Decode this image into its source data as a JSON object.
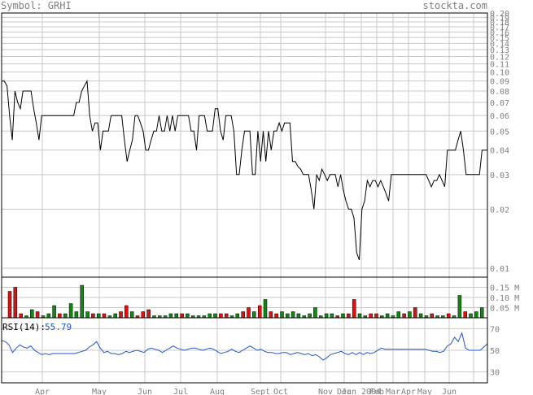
{
  "header": {
    "symbol_text": "Symbol: GRHI",
    "site": "stockta.com"
  },
  "chart_data": [
    {
      "type": "line",
      "panel": "price",
      "scale": "log",
      "ylim": [
        0.009,
        0.2
      ],
      "y_ticks": [
        "0.20",
        "0.19",
        "0.18",
        "0.17",
        "0.16",
        "0.15",
        "0.14",
        "0.13",
        "0.12",
        "0.11",
        "0.10",
        "0.09",
        "0.08",
        "0.07",
        "0.06",
        "0.05",
        "0.04",
        "0.03",
        "0.02",
        "0.01"
      ],
      "x_ticks": [
        "Apr",
        "May",
        "Jun",
        "Jul",
        "Aug",
        "Sept",
        "Oct",
        "Nov",
        "Dec",
        "Jan 2004",
        "Feb",
        "Mar",
        "Apr",
        "May",
        "Jun"
      ],
      "series": [
        {
          "values": [
            0.09,
            0.09,
            0.085,
            0.06,
            0.045,
            0.08,
            0.07,
            0.065,
            0.08,
            0.08,
            0.08,
            0.08,
            0.065,
            0.055,
            0.045,
            0.06,
            0.06,
            0.06,
            0.06,
            0.06,
            0.06,
            0.06,
            0.06,
            0.06,
            0.06,
            0.06,
            0.06,
            0.06,
            0.07,
            0.07,
            0.08,
            0.085,
            0.09,
            0.06,
            0.05,
            0.055,
            0.055,
            0.04,
            0.05,
            0.05,
            0.05,
            0.06,
            0.06,
            0.06,
            0.06,
            0.06,
            0.045,
            0.035,
            0.04,
            0.045,
            0.06,
            0.06,
            0.055,
            0.05,
            0.04,
            0.04,
            0.045,
            0.05,
            0.05,
            0.06,
            0.05,
            0.05,
            0.06,
            0.05,
            0.06,
            0.05,
            0.06,
            0.06,
            0.06,
            0.06,
            0.06,
            0.05,
            0.05,
            0.04,
            0.06,
            0.06,
            0.06,
            0.05,
            0.05,
            0.05,
            0.065,
            0.065,
            0.05,
            0.045,
            0.06,
            0.06,
            0.06,
            0.05,
            0.03,
            0.03,
            0.04,
            0.05,
            0.05,
            0.05,
            0.03,
            0.03,
            0.05,
            0.035,
            0.05,
            0.035,
            0.05,
            0.04,
            0.05,
            0.05,
            0.055,
            0.05,
            0.055,
            0.055,
            0.055,
            0.035,
            0.035,
            0.033,
            0.032,
            0.03,
            0.03,
            0.03,
            0.025,
            0.02,
            0.03,
            0.028,
            0.032,
            0.03,
            0.028,
            0.03,
            0.03,
            0.03,
            0.026,
            0.03,
            0.025,
            0.022,
            0.02,
            0.02,
            0.018,
            0.012,
            0.011,
            0.02,
            0.022,
            0.028,
            0.026,
            0.028,
            0.028,
            0.026,
            0.028,
            0.026,
            0.024,
            0.022,
            0.03,
            0.03,
            0.03,
            0.03,
            0.03,
            0.03,
            0.03,
            0.03,
            0.03,
            0.03,
            0.03,
            0.03,
            0.03,
            0.03,
            0.028,
            0.026,
            0.028,
            0.028,
            0.03,
            0.028,
            0.026,
            0.04,
            0.04,
            0.04,
            0.04,
            0.045,
            0.05,
            0.04,
            0.03,
            0.03,
            0.03,
            0.03,
            0.03,
            0.03,
            0.04,
            0.04,
            0.04
          ]
        }
      ]
    },
    {
      "type": "bar",
      "panel": "volume",
      "unit": "M",
      "ylim": [
        0,
        0.2
      ],
      "y_ticks": [
        "0.15 M",
        "0.10 M",
        "0.05 M"
      ],
      "bars": [
        [
          0.13,
          "r"
        ],
        [
          0.15,
          "r"
        ],
        [
          0.02,
          "r"
        ],
        [
          0.01,
          "g"
        ],
        [
          0.04,
          "g"
        ],
        [
          0.03,
          "r"
        ],
        [
          0.01,
          "g"
        ],
        [
          0.02,
          "g"
        ],
        [
          0.06,
          "g"
        ],
        [
          0.02,
          "r"
        ],
        [
          0.02,
          "g"
        ],
        [
          0.07,
          "g"
        ],
        [
          0.03,
          "g"
        ],
        [
          0.16,
          "g"
        ],
        [
          0.03,
          "g"
        ],
        [
          0.02,
          "r"
        ],
        [
          0.02,
          "g"
        ],
        [
          0.02,
          "r"
        ],
        [
          0.01,
          "g"
        ],
        [
          0.02,
          "g"
        ],
        [
          0.03,
          "r"
        ],
        [
          0.06,
          "r"
        ],
        [
          0.03,
          "g"
        ],
        [
          0.01,
          "r"
        ],
        [
          0.03,
          "r"
        ],
        [
          0.04,
          "r"
        ],
        [
          0.01,
          "g"
        ],
        [
          0.01,
          "g"
        ],
        [
          0.01,
          "g"
        ],
        [
          0.02,
          "g"
        ],
        [
          0.02,
          "g"
        ],
        [
          0.02,
          "r"
        ],
        [
          0.02,
          "g"
        ],
        [
          0.01,
          "g"
        ],
        [
          0.01,
          "g"
        ],
        [
          0.01,
          "g"
        ],
        [
          0.02,
          "g"
        ],
        [
          0.02,
          "g"
        ],
        [
          0.02,
          "r"
        ],
        [
          0.02,
          "r"
        ],
        [
          0.01,
          "g"
        ],
        [
          0.02,
          "g"
        ],
        [
          0.03,
          "r"
        ],
        [
          0.05,
          "r"
        ],
        [
          0.03,
          "g"
        ],
        [
          0.06,
          "r"
        ],
        [
          0.09,
          "g"
        ],
        [
          0.03,
          "r"
        ],
        [
          0.02,
          "r"
        ],
        [
          0.03,
          "g"
        ],
        [
          0.02,
          "g"
        ],
        [
          0.03,
          "g"
        ],
        [
          0.02,
          "g"
        ],
        [
          0.01,
          "g"
        ],
        [
          0.02,
          "g"
        ],
        [
          0.05,
          "g"
        ],
        [
          0.01,
          "g"
        ],
        [
          0.02,
          "g"
        ],
        [
          0.02,
          "g"
        ],
        [
          0.01,
          "r"
        ],
        [
          0.02,
          "g"
        ],
        [
          0.02,
          "r"
        ],
        [
          0.09,
          "r"
        ],
        [
          0.02,
          "g"
        ],
        [
          0.01,
          "g"
        ],
        [
          0.02,
          "r"
        ],
        [
          0.02,
          "r"
        ],
        [
          0.01,
          "g"
        ],
        [
          0.02,
          "g"
        ],
        [
          0.01,
          "g"
        ],
        [
          0.03,
          "g"
        ],
        [
          0.02,
          "r"
        ],
        [
          0.03,
          "g"
        ],
        [
          0.05,
          "r"
        ],
        [
          0.02,
          "g"
        ],
        [
          0.01,
          "g"
        ],
        [
          0.02,
          "r"
        ],
        [
          0.01,
          "g"
        ],
        [
          0.01,
          "g"
        ],
        [
          0.02,
          "r"
        ],
        [
          0.01,
          "g"
        ],
        [
          0.11,
          "g"
        ],
        [
          0.03,
          "r"
        ],
        [
          0.02,
          "g"
        ],
        [
          0.03,
          "g"
        ],
        [
          0.05,
          "g"
        ]
      ]
    },
    {
      "type": "line",
      "panel": "rsi",
      "label": "RSI(14):",
      "value": "55.79",
      "ylim": [
        20,
        80
      ],
      "y_ticks": [
        "70",
        "50",
        "30"
      ],
      "series": [
        {
          "values": [
            59,
            58,
            55,
            48,
            52,
            55,
            53,
            52,
            54,
            50,
            48,
            46,
            47,
            46,
            47,
            47,
            47,
            47,
            47,
            47,
            47,
            48,
            49,
            50,
            53,
            55,
            58,
            52,
            48,
            49,
            47,
            47,
            46,
            47,
            49,
            48,
            49,
            50,
            49,
            48,
            51,
            52,
            51,
            50,
            48,
            50,
            52,
            54,
            52,
            51,
            50,
            51,
            52,
            52,
            51,
            50,
            51,
            52,
            51,
            49,
            47,
            48,
            49,
            51,
            49,
            48,
            50,
            52,
            54,
            52,
            50,
            51,
            49,
            48,
            48,
            47,
            47,
            48,
            48,
            46,
            47,
            48,
            47,
            46,
            47,
            45,
            46,
            44,
            41,
            43,
            46,
            47,
            48,
            49,
            47,
            46,
            48,
            46,
            48,
            46,
            48,
            47,
            48,
            50,
            52,
            51,
            51,
            51,
            51,
            51,
            51,
            51,
            51,
            51,
            51,
            51,
            51,
            50,
            49,
            49,
            48,
            49,
            54,
            56,
            62,
            58,
            66,
            52,
            50,
            50,
            50,
            50,
            53,
            56
          ]
        }
      ]
    }
  ]
}
